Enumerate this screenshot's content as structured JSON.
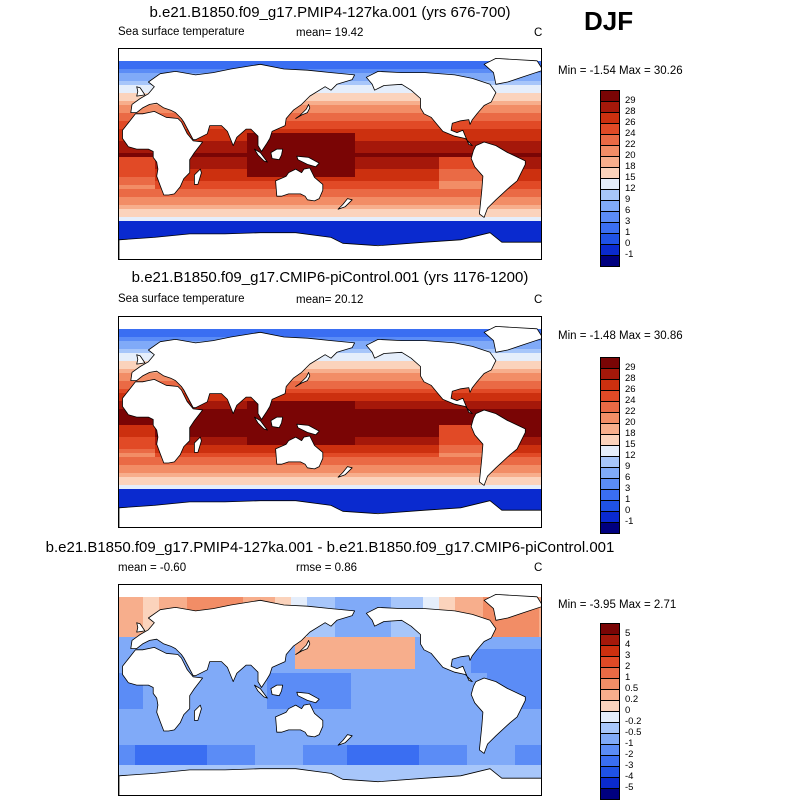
{
  "season": "DJF",
  "color_scales": {
    "abs": [
      "#00007f",
      "#0a2acf",
      "#1f52e6",
      "#3a6ef2",
      "#5b8cf6",
      "#80aaf8",
      "#a7c6fa",
      "#e5eefb",
      "#fbd3bc",
      "#f7ae8c",
      "#f28d66",
      "#ea6a45",
      "#e14a26",
      "#cc300f",
      "#a5180a",
      "#7a0505"
    ],
    "diff": [
      "#00007f",
      "#0a2acf",
      "#1f52e6",
      "#3a6ef2",
      "#5b8cf6",
      "#80aaf8",
      "#a7c6fa",
      "#e5eefb",
      "#fbd3bc",
      "#f7ae8c",
      "#f28d66",
      "#ea6a45",
      "#e14a26",
      "#cc300f",
      "#a5180a",
      "#7a0505"
    ]
  },
  "panels": [
    {
      "title": "b.e21.B1850.f09_g17.PMIP4-127ka.001 (yrs 676-700)",
      "left_label": "Sea surface temperature",
      "mid_label": "mean=  19.42",
      "rmse_label": "",
      "units": "C",
      "minmax": "Min =  -1.54 Max =  30.26",
      "scale": "abs",
      "levels": [
        "29",
        "28",
        "26",
        "24",
        "22",
        "20",
        "18",
        "15",
        "12",
        "9",
        "6",
        "3",
        "1",
        "0",
        "-1"
      ]
    },
    {
      "title": "b.e21.B1850.f09_g17.CMIP6-piControl.001 (yrs 1176-1200)",
      "left_label": "Sea surface temperature",
      "mid_label": "mean=  20.12",
      "rmse_label": "",
      "units": "C",
      "minmax": "Min =  -1.48 Max =  30.86",
      "scale": "abs",
      "levels": [
        "29",
        "28",
        "26",
        "24",
        "22",
        "20",
        "18",
        "15",
        "12",
        "9",
        "6",
        "3",
        "1",
        "0",
        "-1"
      ]
    },
    {
      "title": "b.e21.B1850.f09_g17.PMIP4-127ka.001 - b.e21.B1850.f09_g17.CMIP6-piControl.001",
      "left_label": "mean =  -0.60",
      "mid_label": "",
      "rmse_label": "rmse =   0.86",
      "units": "C",
      "minmax": "Min =  -3.95 Max =   2.71",
      "scale": "diff",
      "levels": [
        "5",
        "4",
        "3",
        "2",
        "1",
        "0.5",
        "0.2",
        "0",
        "-0.2",
        "-0.5",
        "-1",
        "-2",
        "-3",
        "-4",
        "-5"
      ]
    }
  ],
  "chart_data": [
    {
      "type": "heatmap",
      "title": "b.e21.B1850.f09_g17.PMIP4-127ka.001 (yrs 676-700)",
      "variable": "Sea surface temperature",
      "units": "C",
      "mean": 19.42,
      "min": -1.54,
      "max": 30.26,
      "contour_levels": [
        -1,
        0,
        1,
        3,
        6,
        9,
        12,
        15,
        18,
        20,
        22,
        24,
        26,
        28,
        29
      ]
    },
    {
      "type": "heatmap",
      "title": "b.e21.B1850.f09_g17.CMIP6-piControl.001 (yrs 1176-1200)",
      "variable": "Sea surface temperature",
      "units": "C",
      "mean": 20.12,
      "min": -1.48,
      "max": 30.86,
      "contour_levels": [
        -1,
        0,
        1,
        3,
        6,
        9,
        12,
        15,
        18,
        20,
        22,
        24,
        26,
        28,
        29
      ]
    },
    {
      "type": "heatmap",
      "title": "b.e21.B1850.f09_g17.PMIP4-127ka.001 - b.e21.B1850.f09_g17.CMIP6-piControl.001",
      "units": "C",
      "mean": -0.6,
      "rmse": 0.86,
      "min": -3.95,
      "max": 2.71,
      "contour_levels": [
        -5,
        -4,
        -3,
        -2,
        -1,
        -0.5,
        -0.2,
        0,
        0.2,
        0.5,
        1,
        2,
        3,
        4,
        5
      ]
    }
  ]
}
